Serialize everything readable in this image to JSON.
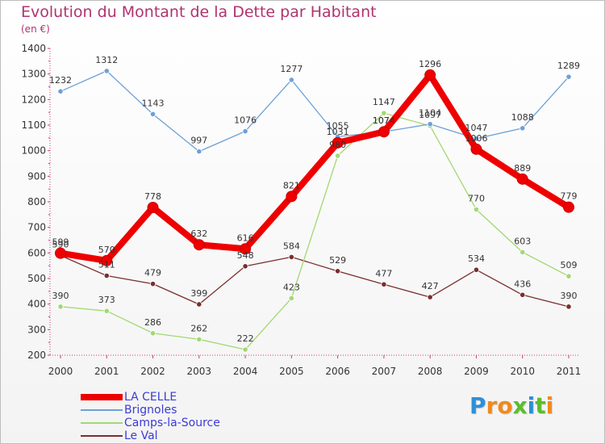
{
  "header": {
    "title": "Evolution du Montant de la Dette par Habitant",
    "subtitle": "(en €)"
  },
  "logo": {
    "text": "Proxiti",
    "letters": [
      "P",
      "r",
      "o",
      "x",
      "i",
      "t",
      "i"
    ],
    "colors": [
      "#2e8fd8",
      "#f08a1c",
      "#f08a1c",
      "#5bbd2c",
      "#2e8fd8",
      "#5bbd2c",
      "#f08a1c"
    ]
  },
  "chart_data": {
    "type": "line",
    "title": "Evolution du Montant de la Dette par Habitant",
    "ylabel": "(en €)",
    "xlabel": "",
    "categories": [
      "2000",
      "2001",
      "2002",
      "2003",
      "2004",
      "2005",
      "2006",
      "2007",
      "2008",
      "2009",
      "2010",
      "2011"
    ],
    "ylim": [
      200,
      1400
    ],
    "yticks": [
      200,
      300,
      400,
      500,
      600,
      700,
      800,
      900,
      1000,
      1100,
      1200,
      1300,
      1400
    ],
    "series": [
      {
        "name": "LA CELLE",
        "color": "#ee0000",
        "values": [
          599,
          570,
          778,
          632,
          616,
          821,
          1031,
          1074,
          1296,
          1006,
          889,
          779
        ],
        "labels": [
          "599",
          "570",
          "778",
          "632",
          "616",
          "821",
          "1031",
          "1074",
          "1296",
          "1006",
          "889",
          "779"
        ]
      },
      {
        "name": "Brignoles",
        "color": "#6ea0d8",
        "values": [
          1232,
          1312,
          1143,
          997,
          1076,
          1277,
          1055,
          1074,
          1104,
          1047,
          1088,
          1289
        ],
        "labels": [
          "1232",
          "1312",
          "1143",
          "997",
          "1076",
          "1277",
          "1055",
          "1074",
          "1104",
          "1047",
          "1088",
          "1289"
        ]
      },
      {
        "name": "Camps-la-Source",
        "color": "#a2d873",
        "values": [
          390,
          373,
          286,
          262,
          222,
          423,
          980,
          1147,
          1097,
          770,
          603,
          509
        ],
        "labels": [
          "390",
          "373",
          "286",
          "262",
          "222",
          "423",
          "980",
          "1147",
          "1097",
          "770",
          "603",
          "509"
        ]
      },
      {
        "name": "Le Val",
        "color": "#7a2e2e",
        "values": [
          590,
          511,
          479,
          399,
          548,
          584,
          529,
          477,
          427,
          534,
          436,
          390
        ],
        "labels": [
          "590",
          "511",
          "479",
          "399",
          "548",
          "584",
          "529",
          "477",
          "427",
          "534",
          "436",
          "390"
        ]
      }
    ],
    "grid": false,
    "legend_position": "bottom-left"
  }
}
